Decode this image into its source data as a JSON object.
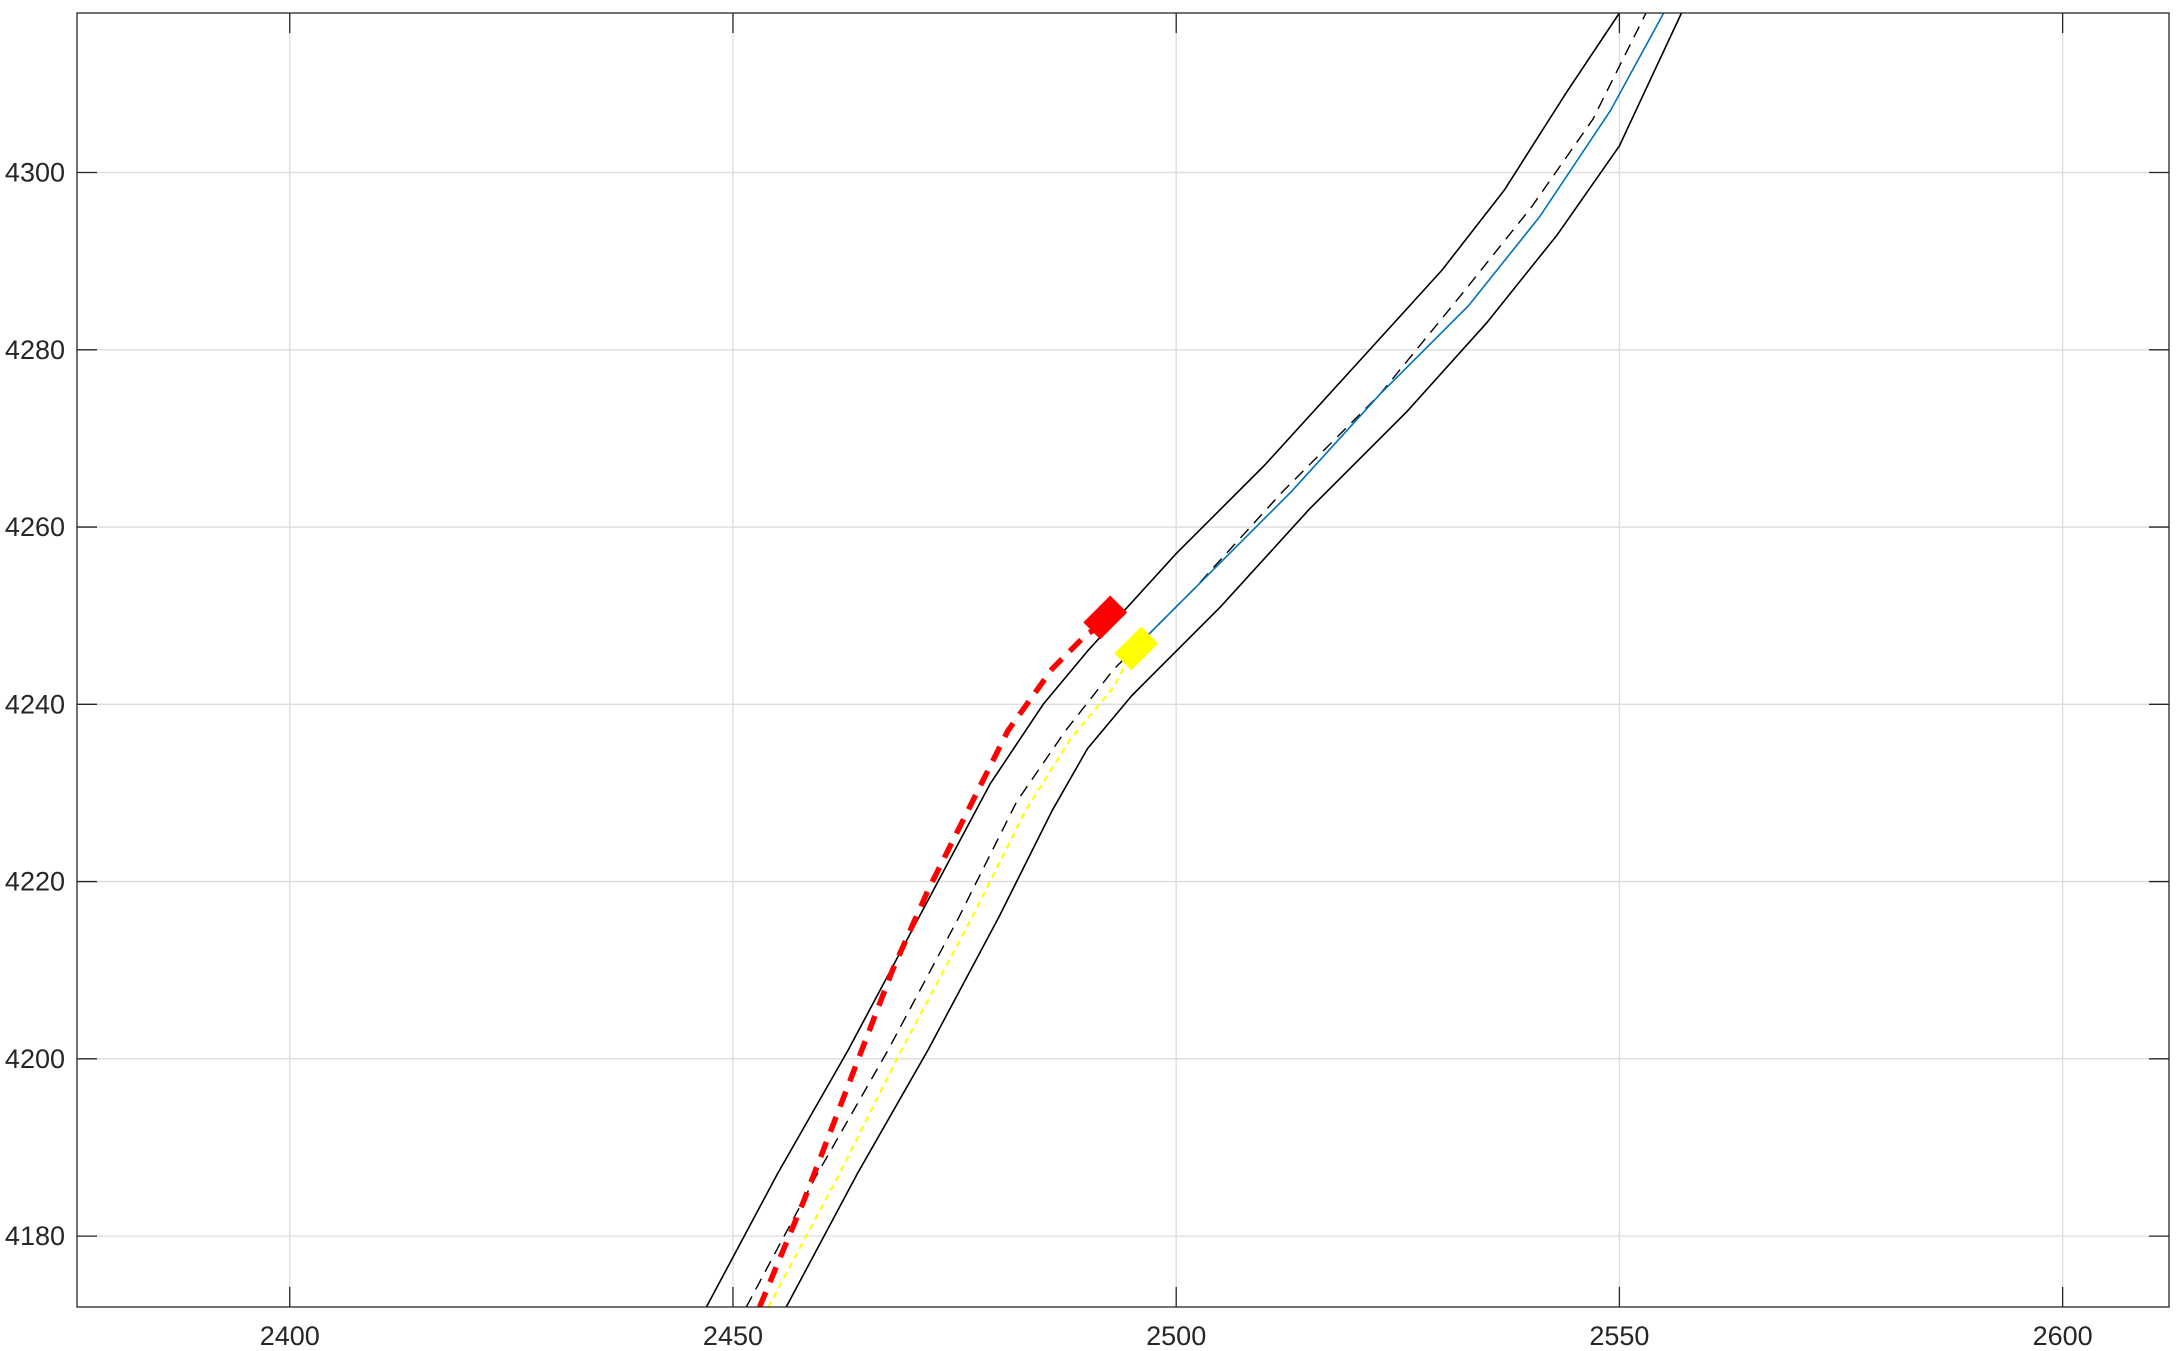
{
  "chart_data": {
    "type": "line",
    "title": "",
    "xlabel": "",
    "ylabel": "",
    "xlim": [
      2376,
      2612
    ],
    "ylim": [
      4172,
      4318
    ],
    "grid": true,
    "x_ticks": [
      2400,
      2450,
      2500,
      2550,
      2600
    ],
    "y_ticks": [
      4180,
      4200,
      4220,
      4240,
      4260,
      4280,
      4300
    ],
    "x_tick_labels": [
      "2400",
      "2450",
      "2500",
      "2550",
      "2600"
    ],
    "y_tick_labels": [
      "4180",
      "4200",
      "4220",
      "4240",
      "4260",
      "4280",
      "4300"
    ],
    "colors": {
      "boundary": "#000000",
      "centerline": "#000000",
      "blue_path": "#0072BD",
      "red_path": "#FF0000",
      "yellow_path": "#FFFF00",
      "grid": "#dcdcdc",
      "axes": "#262626"
    },
    "series": [
      {
        "style": "boundary",
        "points": [
          [
            2447,
            4172
          ],
          [
            2455,
            4187
          ],
          [
            2463,
            4201
          ],
          [
            2471,
            4216
          ],
          [
            2479,
            4231
          ],
          [
            2485,
            4240
          ],
          [
            2490,
            4246
          ],
          [
            2500,
            4257
          ],
          [
            2510,
            4267
          ],
          [
            2520,
            4278
          ],
          [
            2530,
            4289
          ],
          [
            2537,
            4298
          ],
          [
            2544,
            4309
          ],
          [
            2550,
            4318
          ]
        ]
      },
      {
        "style": "boundary",
        "points": [
          [
            2456,
            4172
          ],
          [
            2464,
            4187
          ],
          [
            2472,
            4201
          ],
          [
            2480,
            4216
          ],
          [
            2486,
            4228
          ],
          [
            2490,
            4235
          ],
          [
            2495,
            4241
          ],
          [
            2505,
            4251
          ],
          [
            2515,
            4262
          ],
          [
            2526,
            4273
          ],
          [
            2535,
            4283
          ],
          [
            2543,
            4293
          ],
          [
            2550,
            4303
          ],
          [
            2557,
            4318
          ]
        ]
      },
      {
        "style": "centerline",
        "points": [
          [
            2451.5,
            4172
          ],
          [
            2459.5,
            4187
          ],
          [
            2467.5,
            4201
          ],
          [
            2475.5,
            4216
          ],
          [
            2482,
            4229
          ],
          [
            2487.5,
            4237
          ],
          [
            2493,
            4244
          ],
          [
            2502,
            4253
          ],
          [
            2512,
            4264
          ],
          [
            2523,
            4275
          ],
          [
            2532,
            4286
          ],
          [
            2540,
            4296
          ],
          [
            2547,
            4306
          ],
          [
            2553,
            4318
          ]
        ]
      },
      {
        "style": "blue_path",
        "points": [
          [
            2495,
            4246
          ],
          [
            2503,
            4254
          ],
          [
            2513,
            4264
          ],
          [
            2523,
            4275
          ],
          [
            2533,
            4285
          ],
          [
            2541,
            4295
          ],
          [
            2549,
            4307
          ],
          [
            2555,
            4318
          ]
        ]
      },
      {
        "style": "yellow_path",
        "points": [
          [
            2454,
            4172
          ],
          [
            2462,
            4187
          ],
          [
            2469,
            4201
          ],
          [
            2477,
            4216
          ],
          [
            2483,
            4228
          ],
          [
            2488,
            4236
          ],
          [
            2493,
            4242
          ],
          [
            2495,
            4246
          ]
        ]
      },
      {
        "style": "red_path",
        "points": [
          [
            2453,
            4172
          ],
          [
            2458,
            4184
          ],
          [
            2463,
            4197
          ],
          [
            2468,
            4210
          ],
          [
            2472,
            4219
          ],
          [
            2477,
            4229
          ],
          [
            2481,
            4237
          ],
          [
            2486,
            4244
          ],
          [
            2490,
            4248
          ],
          [
            2492,
            4249
          ]
        ]
      }
    ],
    "markers": [
      {
        "color": "red",
        "x": 2492,
        "y": 4249.8,
        "angle_deg": 45
      },
      {
        "color": "yellow",
        "x": 2495.5,
        "y": 4246.3,
        "angle_deg": 45
      }
    ]
  }
}
